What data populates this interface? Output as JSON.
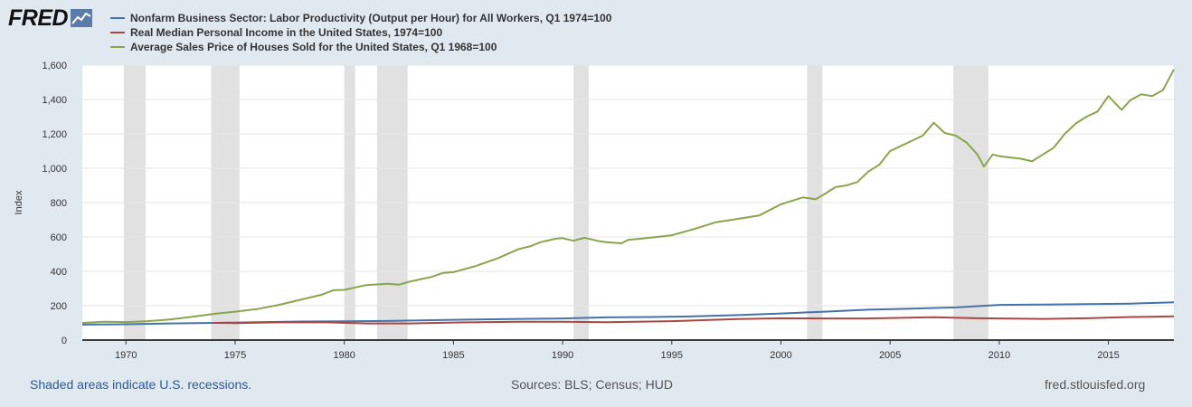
{
  "logo": {
    "text": "FRED",
    "icon": "line-chart-icon"
  },
  "chart_data": {
    "type": "line",
    "title": "",
    "xlabel": "",
    "ylabel": "Index",
    "xlim": [
      1968,
      2018
    ],
    "ylim": [
      0,
      1600
    ],
    "grid": true,
    "legend_position": "top-left",
    "x_ticks": [
      "1970",
      "1975",
      "1980",
      "1985",
      "1990",
      "1995",
      "2000",
      "2005",
      "2010",
      "2015"
    ],
    "y_ticks": [
      "0",
      "200",
      "400",
      "600",
      "800",
      "1,000",
      "1,200",
      "1,400",
      "1,600"
    ],
    "recessions": [
      [
        1969.9,
        1970.9
      ],
      [
        1973.9,
        1975.2
      ],
      [
        1980.0,
        1980.5
      ],
      [
        1981.5,
        1982.9
      ],
      [
        1990.5,
        1991.2
      ],
      [
        2001.2,
        2001.9
      ],
      [
        2007.9,
        2009.5
      ]
    ],
    "series": [
      {
        "name": "Nonfarm Business Sector: Labor Productivity (Output per Hour) for All Workers, Q1 1974=100",
        "color": "#4572a7",
        "points": [
          [
            1968,
            90
          ],
          [
            1970,
            92
          ],
          [
            1972,
            97
          ],
          [
            1974,
            100
          ],
          [
            1976,
            104
          ],
          [
            1978,
            108
          ],
          [
            1980,
            109
          ],
          [
            1982,
            111
          ],
          [
            1984,
            116
          ],
          [
            1986,
            120
          ],
          [
            1988,
            123
          ],
          [
            1990,
            126
          ],
          [
            1992,
            132
          ],
          [
            1994,
            134
          ],
          [
            1996,
            138
          ],
          [
            1998,
            145
          ],
          [
            2000,
            155
          ],
          [
            2002,
            165
          ],
          [
            2004,
            177
          ],
          [
            2006,
            183
          ],
          [
            2008,
            190
          ],
          [
            2010,
            205
          ],
          [
            2012,
            207
          ],
          [
            2014,
            209
          ],
          [
            2016,
            212
          ],
          [
            2018,
            220
          ]
        ]
      },
      {
        "name": "Real Median Personal Income in the United States, 1974=100",
        "color": "#aa4643",
        "points": [
          [
            1974,
            100
          ],
          [
            1975,
            99
          ],
          [
            1977,
            103
          ],
          [
            1979,
            104
          ],
          [
            1981,
            97
          ],
          [
            1983,
            97
          ],
          [
            1985,
            102
          ],
          [
            1988,
            107
          ],
          [
            1990,
            107
          ],
          [
            1992,
            104
          ],
          [
            1995,
            110
          ],
          [
            1998,
            122
          ],
          [
            2000,
            127
          ],
          [
            2002,
            126
          ],
          [
            2004,
            126
          ],
          [
            2007,
            133
          ],
          [
            2009,
            127
          ],
          [
            2012,
            123
          ],
          [
            2014,
            127
          ],
          [
            2016,
            134
          ],
          [
            2018,
            138
          ]
        ]
      },
      {
        "name": "Average Sales Price of Houses Sold for the United States, Q1 1968=100",
        "color": "#89a54e",
        "points": [
          [
            1968,
            100
          ],
          [
            1969,
            107
          ],
          [
            1970,
            105
          ],
          [
            1971,
            110
          ],
          [
            1972,
            120
          ],
          [
            1973,
            135
          ],
          [
            1974,
            152
          ],
          [
            1975,
            165
          ],
          [
            1976,
            180
          ],
          [
            1977,
            205
          ],
          [
            1978,
            235
          ],
          [
            1979,
            265
          ],
          [
            1979.5,
            290
          ],
          [
            1980,
            292
          ],
          [
            1981,
            320
          ],
          [
            1982,
            328
          ],
          [
            1982.5,
            322
          ],
          [
            1983,
            340
          ],
          [
            1984,
            368
          ],
          [
            1984.5,
            390
          ],
          [
            1985,
            395
          ],
          [
            1986,
            430
          ],
          [
            1987,
            475
          ],
          [
            1988,
            530
          ],
          [
            1988.5,
            545
          ],
          [
            1989,
            570
          ],
          [
            1989.7,
            590
          ],
          [
            1990,
            593
          ],
          [
            1990.5,
            578
          ],
          [
            1991,
            595
          ],
          [
            1991.7,
            575
          ],
          [
            1992,
            570
          ],
          [
            1992.7,
            563
          ],
          [
            1993,
            583
          ],
          [
            1994,
            595
          ],
          [
            1995,
            610
          ],
          [
            1996,
            645
          ],
          [
            1997,
            685
          ],
          [
            1998,
            705
          ],
          [
            1999,
            725
          ],
          [
            2000,
            790
          ],
          [
            2000.5,
            810
          ],
          [
            2001,
            830
          ],
          [
            2001.6,
            820
          ],
          [
            2002,
            850
          ],
          [
            2002.5,
            890
          ],
          [
            2003,
            900
          ],
          [
            2003.5,
            920
          ],
          [
            2004,
            980
          ],
          [
            2004.5,
            1020
          ],
          [
            2005,
            1100
          ],
          [
            2005.5,
            1130
          ],
          [
            2006,
            1160
          ],
          [
            2006.5,
            1190
          ],
          [
            2007,
            1265
          ],
          [
            2007.5,
            1205
          ],
          [
            2008,
            1190
          ],
          [
            2008.5,
            1150
          ],
          [
            2009,
            1080
          ],
          [
            2009.3,
            1010
          ],
          [
            2009.7,
            1080
          ],
          [
            2010,
            1070
          ],
          [
            2011,
            1055
          ],
          [
            2011.5,
            1040
          ],
          [
            2012,
            1080
          ],
          [
            2012.5,
            1120
          ],
          [
            2013,
            1200
          ],
          [
            2013.5,
            1260
          ],
          [
            2014,
            1300
          ],
          [
            2014.5,
            1330
          ],
          [
            2015,
            1420
          ],
          [
            2015.3,
            1380
          ],
          [
            2015.6,
            1340
          ],
          [
            2016,
            1395
          ],
          [
            2016.5,
            1430
          ],
          [
            2017,
            1420
          ],
          [
            2017.5,
            1455
          ],
          [
            2018,
            1575
          ]
        ]
      }
    ]
  },
  "footer": {
    "left": "Shaded areas indicate U.S. recessions.",
    "center": "Sources: BLS; Census; HUD",
    "right": "fred.stlouisfed.org"
  }
}
